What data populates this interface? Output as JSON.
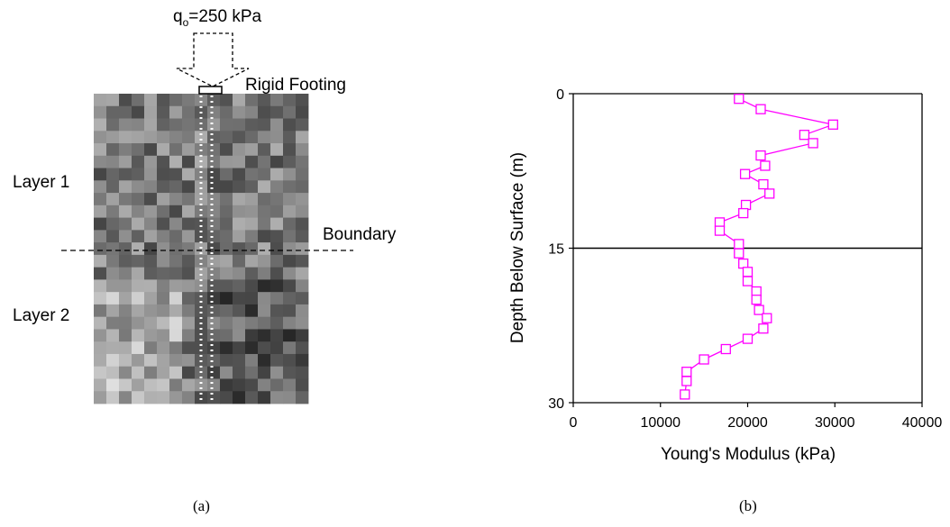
{
  "panel_a": {
    "load_label": "q",
    "load_subscript": "o",
    "load_value": "=250 kPa",
    "footing_label": "Rigid Footing",
    "layer1_label": "Layer 1",
    "layer2_label": "Layer 2",
    "boundary_label": "Boundary",
    "caption": "(a)"
  },
  "panel_b": {
    "caption": "(b)"
  },
  "colors": {
    "series": "#ff00ff",
    "boundary_line": "#000000",
    "soil_light": "#d9d9d9",
    "soil_dark": "#3a3a3a"
  },
  "chart_data": {
    "type": "line",
    "orientation": "depth-profile",
    "xlabel": "Young's Modulus (kPa)",
    "ylabel": "Depth Below Surface (m)",
    "xlim": [
      0,
      40000
    ],
    "ylim": [
      0,
      30
    ],
    "y_inverted": true,
    "xticks": [
      0,
      10000,
      20000,
      30000,
      40000
    ],
    "yticks": [
      0,
      15,
      30
    ],
    "marker": "square-open",
    "horizontal_line_at_depth": 15,
    "series": [
      {
        "points": [
          {
            "x": 19000,
            "y": 0.5
          },
          {
            "x": 21500,
            "y": 1.5
          },
          {
            "x": 29800,
            "y": 3.0
          },
          {
            "x": 26500,
            "y": 4.0
          },
          {
            "x": 27500,
            "y": 4.8
          },
          {
            "x": 21500,
            "y": 6.0
          },
          {
            "x": 22000,
            "y": 7.0
          },
          {
            "x": 19700,
            "y": 7.8
          },
          {
            "x": 21800,
            "y": 8.8
          },
          {
            "x": 22500,
            "y": 9.7
          },
          {
            "x": 19800,
            "y": 10.8
          },
          {
            "x": 19500,
            "y": 11.6
          },
          {
            "x": 16800,
            "y": 12.5
          },
          {
            "x": 16800,
            "y": 13.3
          },
          {
            "x": 19000,
            "y": 14.6
          },
          {
            "x": 19000,
            "y": 15.5
          },
          {
            "x": 19500,
            "y": 16.5
          },
          {
            "x": 20000,
            "y": 17.3
          },
          {
            "x": 20000,
            "y": 18.2
          },
          {
            "x": 21000,
            "y": 19.2
          },
          {
            "x": 21000,
            "y": 20.0
          },
          {
            "x": 21300,
            "y": 21.0
          },
          {
            "x": 22200,
            "y": 21.8
          },
          {
            "x": 21800,
            "y": 22.8
          },
          {
            "x": 20000,
            "y": 23.8
          },
          {
            "x": 17500,
            "y": 24.8
          },
          {
            "x": 15000,
            "y": 25.8
          },
          {
            "x": 13000,
            "y": 27.0
          },
          {
            "x": 13000,
            "y": 27.9
          },
          {
            "x": 12800,
            "y": 29.2
          }
        ]
      }
    ]
  }
}
